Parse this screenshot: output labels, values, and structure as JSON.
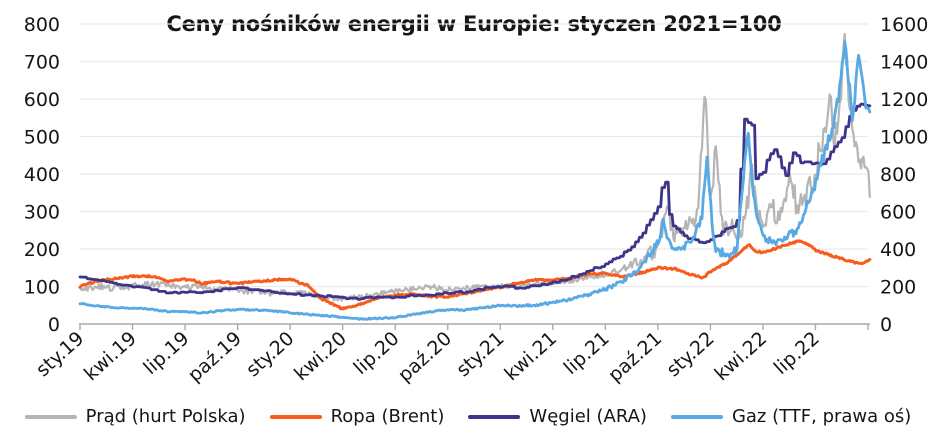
{
  "title": "Ceny nośników energii w Europie: styczen 2021=100",
  "colors": {
    "background": "#ffffff",
    "text": "#161616",
    "gridline": "#eaeaea",
    "axis_line": "#a9a9a9",
    "prad": "#b5b5b5",
    "ropa": "#f75c1c",
    "wegiel": "#3c3589",
    "gaz": "#58a9e4"
  },
  "chart_data": {
    "type": "line",
    "title": "Ceny nośników energii w Europie: styczen 2021=100",
    "xlabel": "",
    "ylabel": "",
    "grid": true,
    "legend_position": "bottom",
    "x_axis": {
      "unit": "months since Jan 2019",
      "tick_every_months": 3,
      "months_span": 45,
      "categories": [
        "sty.19",
        "kwi.19",
        "lip.19",
        "paź.19",
        "sty.20",
        "kwi.20",
        "lip.20",
        "paź.20",
        "sty.21",
        "kwi.21",
        "lip.21",
        "paź.21",
        "sty.22",
        "kwi.22",
        "lip.22"
      ]
    },
    "left_axis": {
      "min": 0,
      "max": 800,
      "step": 100,
      "tick_labels": [
        "800",
        "700",
        "600",
        "500",
        "400",
        "300",
        "200",
        "100",
        "0"
      ]
    },
    "right_axis": {
      "min": 0,
      "max": 1600,
      "step": 200,
      "tick_labels": [
        "1600",
        "1400",
        "1200",
        "1000",
        "800",
        "600",
        "400",
        "200",
        "0"
      ]
    },
    "series": [
      {
        "key": "prad",
        "name": "Prąd (hurt Polska)",
        "color": "#b5b5b5",
        "axis": "left",
        "style": "line",
        "stroke_width": 2.2,
        "seed": 1,
        "noise": [
          [
            0,
            9
          ],
          [
            24,
            6
          ],
          [
            29,
            7
          ],
          [
            32,
            14
          ],
          [
            33,
            25
          ],
          [
            34,
            28
          ],
          [
            35,
            30
          ],
          [
            36,
            32
          ],
          [
            38,
            36
          ],
          [
            39,
            30
          ],
          [
            41,
            34
          ],
          [
            42,
            40
          ],
          [
            43,
            42
          ],
          [
            44,
            36
          ],
          [
            45.1,
            18
          ]
        ],
        "points": [
          [
            0,
            92
          ],
          [
            1,
            100
          ],
          [
            2,
            96
          ],
          [
            3,
            101
          ],
          [
            4,
            105
          ],
          [
            5,
            106
          ],
          [
            6,
            96
          ],
          [
            7,
            100
          ],
          [
            8,
            94
          ],
          [
            9,
            90
          ],
          [
            10,
            86
          ],
          [
            11,
            80
          ],
          [
            12,
            86
          ],
          [
            13,
            80
          ],
          [
            14,
            71
          ],
          [
            15,
            68
          ],
          [
            16,
            72
          ],
          [
            17,
            80
          ],
          [
            18,
            88
          ],
          [
            19,
            95
          ],
          [
            20,
            100
          ],
          [
            21,
            92
          ],
          [
            22,
            96
          ],
          [
            23,
            100
          ],
          [
            24,
            101
          ],
          [
            25,
            104
          ],
          [
            26,
            106
          ],
          [
            27,
            110
          ],
          [
            28,
            116
          ],
          [
            29,
            124
          ],
          [
            30,
            134
          ],
          [
            31,
            148
          ],
          [
            32,
            168
          ],
          [
            33,
            205
          ],
          [
            33.5,
            300
          ],
          [
            34,
            235
          ],
          [
            34.7,
            255
          ],
          [
            35.3,
            300
          ],
          [
            35.7,
            630
          ],
          [
            36,
            300
          ],
          [
            36.3,
            470
          ],
          [
            36.7,
            260
          ],
          [
            37,
            250
          ],
          [
            37.6,
            240
          ],
          [
            38.1,
            310
          ],
          [
            38.35,
            420
          ],
          [
            38.7,
            300
          ],
          [
            39,
            275
          ],
          [
            39.5,
            305
          ],
          [
            40,
            280
          ],
          [
            40.5,
            390
          ],
          [
            41,
            305
          ],
          [
            41.5,
            355
          ],
          [
            42,
            400
          ],
          [
            42.8,
            600
          ],
          [
            43.1,
            470
          ],
          [
            43.7,
            750
          ],
          [
            44.1,
            500
          ],
          [
            44.5,
            430
          ],
          [
            45,
            415
          ],
          [
            45.1,
            350
          ]
        ]
      },
      {
        "key": "ropa",
        "name": "Ropa (Brent)",
        "color": "#f75c1c",
        "axis": "left",
        "style": "line",
        "stroke_width": 3,
        "seed": 2,
        "noise": [
          [
            0,
            2.5
          ],
          [
            45.1,
            2.5
          ]
        ],
        "points": [
          [
            0,
            100
          ],
          [
            0.5,
            108
          ],
          [
            1,
            115
          ],
          [
            2,
            121
          ],
          [
            3,
            127
          ],
          [
            4,
            128
          ],
          [
            4.5,
            124
          ],
          [
            5,
            113
          ],
          [
            6,
            119
          ],
          [
            6.5,
            116
          ],
          [
            7,
            108
          ],
          [
            8,
            113
          ],
          [
            9,
            107
          ],
          [
            10,
            113
          ],
          [
            11,
            117
          ],
          [
            12,
            119
          ],
          [
            13,
            103
          ],
          [
            13.7,
            70
          ],
          [
            14.3,
            55
          ],
          [
            15,
            40
          ],
          [
            16,
            52
          ],
          [
            17,
            70
          ],
          [
            18,
            76
          ],
          [
            19,
            80
          ],
          [
            20,
            74
          ],
          [
            21,
            72
          ],
          [
            22,
            80
          ],
          [
            23,
            91
          ],
          [
            24,
            98
          ],
          [
            25,
            110
          ],
          [
            26,
            117
          ],
          [
            27,
            117
          ],
          [
            28,
            122
          ],
          [
            29,
            132
          ],
          [
            30,
            135
          ],
          [
            31,
            127
          ],
          [
            32,
            136
          ],
          [
            33,
            150
          ],
          [
            34,
            147
          ],
          [
            35,
            130
          ],
          [
            35.6,
            124
          ],
          [
            36,
            140
          ],
          [
            37,
            165
          ],
          [
            38.2,
            212
          ],
          [
            38.5,
            196
          ],
          [
            39,
            190
          ],
          [
            40,
            206
          ],
          [
            41,
            221
          ],
          [
            41.6,
            212
          ],
          [
            42,
            196
          ],
          [
            43,
            181
          ],
          [
            44,
            167
          ],
          [
            44.6,
            160
          ],
          [
            45.1,
            170
          ]
        ]
      },
      {
        "key": "wegiel",
        "name": "Węgiel (ARA)",
        "color": "#3c3589",
        "axis": "left",
        "style": "step",
        "stroke_width": 2.8,
        "seed": 3,
        "noise": [
          [
            0,
            1.5
          ],
          [
            33,
            4
          ],
          [
            45.1,
            4
          ]
        ],
        "points": [
          [
            0,
            125
          ],
          [
            1,
            118
          ],
          [
            2,
            108
          ],
          [
            3,
            100
          ],
          [
            4,
            94
          ],
          [
            5,
            82
          ],
          [
            6,
            86
          ],
          [
            7,
            85
          ],
          [
            8,
            91
          ],
          [
            9,
            96
          ],
          [
            10,
            92
          ],
          [
            11,
            85
          ],
          [
            12,
            80
          ],
          [
            13,
            77
          ],
          [
            14,
            74
          ],
          [
            15,
            70
          ],
          [
            16,
            68
          ],
          [
            17,
            70
          ],
          [
            18,
            72
          ],
          [
            19,
            75
          ],
          [
            20,
            78
          ],
          [
            21,
            82
          ],
          [
            22,
            86
          ],
          [
            23,
            95
          ],
          [
            24,
            100
          ],
          [
            25,
            98
          ],
          [
            26,
            100
          ],
          [
            27,
            110
          ],
          [
            28,
            124
          ],
          [
            29,
            140
          ],
          [
            30,
            160
          ],
          [
            31,
            186
          ],
          [
            32,
            230
          ],
          [
            33,
            310
          ],
          [
            33.4,
            395
          ],
          [
            33.7,
            280
          ],
          [
            34,
            255
          ],
          [
            34.5,
            235
          ],
          [
            35,
            225
          ],
          [
            35.5,
            213
          ],
          [
            36,
            222
          ],
          [
            36.8,
            250
          ],
          [
            37.5,
            258
          ],
          [
            38.05,
            610
          ],
          [
            38.2,
            520
          ],
          [
            38.35,
            555
          ],
          [
            38.6,
            385
          ],
          [
            39,
            405
          ],
          [
            39.35,
            450
          ],
          [
            39.7,
            465
          ],
          [
            40,
            430
          ],
          [
            40.3,
            392
          ],
          [
            40.7,
            462
          ],
          [
            41.2,
            432
          ],
          [
            42,
            428
          ],
          [
            42.6,
            432
          ],
          [
            43,
            468
          ],
          [
            43.5,
            492
          ],
          [
            44,
            558
          ],
          [
            44.4,
            580
          ],
          [
            44.7,
            588
          ],
          [
            45.1,
            578
          ]
        ]
      },
      {
        "key": "gaz",
        "name": "Gaz (TTF, prawa oś)",
        "color": "#58a9e4",
        "axis": "right",
        "style": "line",
        "stroke_width": 2.8,
        "seed": 4,
        "noise": [
          [
            0,
            3
          ],
          [
            24,
            4
          ],
          [
            30,
            9
          ],
          [
            33,
            22
          ],
          [
            36,
            24
          ],
          [
            40,
            18
          ],
          [
            42,
            30
          ],
          [
            43,
            40
          ],
          [
            45.1,
            35
          ]
        ],
        "points": [
          [
            0,
            110
          ],
          [
            1,
            96
          ],
          [
            2,
            88
          ],
          [
            3,
            85
          ],
          [
            4,
            79
          ],
          [
            5,
            66
          ],
          [
            6,
            66
          ],
          [
            7,
            59
          ],
          [
            8,
            70
          ],
          [
            9,
            77
          ],
          [
            10,
            75
          ],
          [
            11,
            70
          ],
          [
            12,
            61
          ],
          [
            13,
            51
          ],
          [
            14,
            45
          ],
          [
            15,
            35
          ],
          [
            16,
            27
          ],
          [
            17,
            30
          ],
          [
            18,
            35
          ],
          [
            19,
            50
          ],
          [
            20,
            66
          ],
          [
            21,
            77
          ],
          [
            22,
            75
          ],
          [
            23,
            86
          ],
          [
            24,
            100
          ],
          [
            25,
            96
          ],
          [
            26,
            101
          ],
          [
            27,
            113
          ],
          [
            28,
            131
          ],
          [
            29,
            155
          ],
          [
            30,
            186
          ],
          [
            31,
            226
          ],
          [
            32,
            300
          ],
          [
            33,
            430
          ],
          [
            33.3,
            545
          ],
          [
            33.7,
            420
          ],
          [
            34,
            392
          ],
          [
            34.5,
            420
          ],
          [
            35,
            450
          ],
          [
            35.5,
            560
          ],
          [
            35.8,
            888
          ],
          [
            36.2,
            420
          ],
          [
            36.6,
            380
          ],
          [
            37,
            372
          ],
          [
            37.5,
            390
          ],
          [
            38.15,
            1050
          ],
          [
            38.45,
            700
          ],
          [
            38.7,
            560
          ],
          [
            39,
            465
          ],
          [
            39.5,
            440
          ],
          [
            40,
            442
          ],
          [
            40.6,
            480
          ],
          [
            41,
            490
          ],
          [
            41.4,
            600
          ],
          [
            42,
            745
          ],
          [
            42.5,
            905
          ],
          [
            43,
            1060
          ],
          [
            43.4,
            1250
          ],
          [
            43.7,
            1520
          ],
          [
            44.1,
            1085
          ],
          [
            44.5,
            1455
          ],
          [
            44.8,
            1200
          ],
          [
            45.1,
            1135
          ]
        ]
      }
    ]
  }
}
